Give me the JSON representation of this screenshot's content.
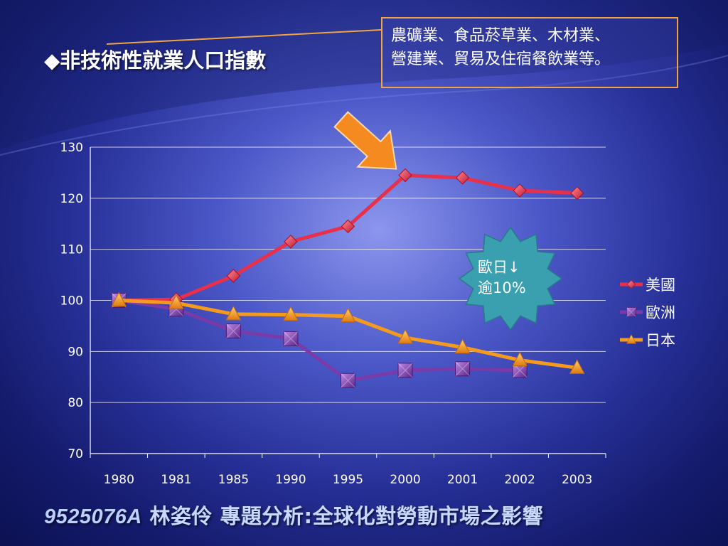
{
  "slide": {
    "title": "◆非技術性就業人口指數",
    "callout": "農礦業、食品菸草業、木材業、\n營建業、貿易及住宿餐飲業等。",
    "star_label": "歐日↓\n逾10%",
    "footer_code": "9525076A",
    "footer_text": " 林姿伶  專題分析:全球化對勞動市場之影響",
    "colors": {
      "us": "#e8304a",
      "eu": "#7a3aa8",
      "jp": "#f49a1c",
      "star": "#3aa0b0",
      "arrow": "#f58a20"
    }
  },
  "chart_data": {
    "type": "line",
    "categories": [
      "1980",
      "1981",
      "1985",
      "1990",
      "1995",
      "2000",
      "2001",
      "2002",
      "2003"
    ],
    "ylim": [
      70,
      130
    ],
    "yticks": [
      "70",
      "80",
      "90",
      "100",
      "110",
      "120",
      "130"
    ],
    "grid": true,
    "legend_position": "right",
    "series": [
      {
        "name": "美國",
        "marker": "diamond",
        "color": "#e8304a",
        "values": [
          100,
          100.2,
          104.8,
          111.5,
          114.5,
          124.5,
          124,
          121.5,
          121
        ]
      },
      {
        "name": "歐洲",
        "marker": "square",
        "color": "#7a3aa8",
        "values": [
          100,
          98.3,
          94,
          92.5,
          84.3,
          86.3,
          86.6,
          86.3,
          null
        ]
      },
      {
        "name": "日本",
        "marker": "triangle",
        "color": "#f49a1c",
        "values": [
          100,
          99.5,
          97.3,
          97.2,
          96.9,
          92.7,
          90.8,
          88.3,
          86.8
        ]
      }
    ]
  }
}
